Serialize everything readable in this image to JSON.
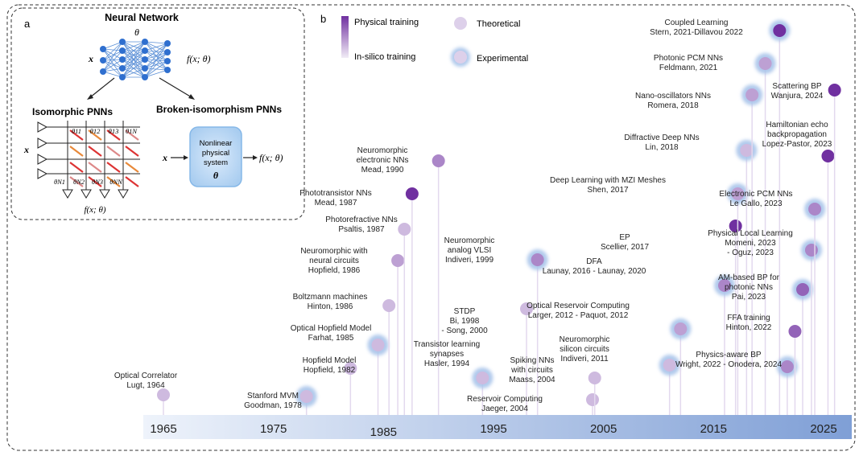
{
  "panel_a": {
    "letter": "a",
    "neural_network_title": "Neural Network",
    "theta": "θ",
    "x": "x",
    "f_label": "f(x; θ)",
    "isomorphic_title": "Isomorphic PNNs",
    "broken_title": "Broken-isomorphism PNNs",
    "crossbar_weights_top": [
      "θ11",
      "θ12",
      "θ13",
      "θ1N"
    ],
    "crossbar_weights_bottom": [
      "θN1",
      "θN2",
      "θN3",
      "θNN"
    ],
    "system_box_lines": [
      "Nonlinear",
      "physical",
      "system"
    ],
    "system_box_theta": "θ",
    "iso_output": "f(x; θ)",
    "broken_input": "x",
    "broken_output": "f(x; θ)"
  },
  "panel_b": {
    "letter": "b",
    "legend": {
      "physical_training": "Physical training",
      "insilico_training": "In-silico training",
      "theoretical": "Theoretical",
      "experimental": "Experimental"
    },
    "axis_years": [
      "1965",
      "1975",
      "1985",
      "1995",
      "2005",
      "2015",
      "2025"
    ],
    "colors": {
      "physical": "#7030a0",
      "insilico": "#e6dcef",
      "glow": "#a9c4ea",
      "axis_start": "#eef3fb",
      "axis_end": "#7f9fd6"
    }
  },
  "chart_data": {
    "type": "timeline",
    "title": "",
    "xlabel": "",
    "ylabel": "",
    "xlim": [
      1965,
      2025
    ],
    "intensity_scale": "0 = in-silico training, 1 = physical training",
    "events": [
      {
        "lines": [
          "Optical Correlator",
          "Lugt, 1964"
        ],
        "year": 1965.0,
        "intensity": 0.2,
        "kind": "theoretical"
      },
      {
        "lines": [
          "Stanford MVM",
          "Goodman, 1978"
        ],
        "year": 1978.0,
        "intensity": 0.2,
        "kind": "experimental"
      },
      {
        "lines": [
          "Hopfield Model",
          "Hopfield, 1982"
        ],
        "year": 1982.0,
        "intensity": 0.2,
        "kind": "theoretical"
      },
      {
        "lines": [
          "Optical Hopfield Model",
          "Farhat, 1985"
        ],
        "year": 1984.5,
        "intensity": 0.2,
        "kind": "experimental"
      },
      {
        "lines": [
          "Boltzmann machines",
          "Hinton, 1986"
        ],
        "year": 1985.5,
        "intensity": 0.2,
        "kind": "theoretical"
      },
      {
        "lines": [
          "Neuromorphic with",
          "neural circuits",
          "Hopfield, 1986"
        ],
        "year": 1986.3,
        "intensity": 0.35,
        "kind": "theoretical"
      },
      {
        "lines": [
          "Photorefractive NNs",
          "Psaltis, 1987"
        ],
        "year": 1986.9,
        "intensity": 0.2,
        "kind": "theoretical"
      },
      {
        "lines": [
          "Phototransistor NNs",
          "Mead, 1987"
        ],
        "year": 1987.6,
        "intensity": 1.0,
        "kind": "theoretical"
      },
      {
        "lines": [
          "Neuromorphic",
          "electronic NNs",
          "Mead, 1990"
        ],
        "year": 1990.0,
        "intensity": 0.5,
        "kind": "theoretical"
      },
      {
        "lines": [
          "Transistor learning",
          "synapses",
          "Hasler, 1994"
        ],
        "year": 1994.0,
        "intensity": 0.2,
        "kind": "experimental"
      },
      {
        "lines": [
          "STDP",
          "Bi, 1998",
          "- Song, 2000"
        ],
        "year": 1998.0,
        "intensity": 0.2,
        "kind": "theoretical"
      },
      {
        "lines": [
          "Neuromorphic",
          "analog VLSI",
          "Indiveri, 1999"
        ],
        "year": 1999.0,
        "intensity": 0.5,
        "kind": "experimental"
      },
      {
        "lines": [
          "Reservoir Computing",
          "Jaeger, 2004"
        ],
        "year": 2004.0,
        "intensity": 0.2,
        "kind": "theoretical"
      },
      {
        "lines": [
          "Spiking NNs",
          "with circuits",
          "Maass, 2004"
        ],
        "year": 2004.2,
        "intensity": 0.2,
        "kind": "theoretical"
      },
      {
        "lines": [
          "Neuromorphic",
          "silicon circuits",
          "Indiveri, 2011"
        ],
        "year": 2011.0,
        "intensity": 0.2,
        "kind": "experimental"
      },
      {
        "lines": [
          "Optical Reservoir Computing",
          "Larger, 2012 - Paquot, 2012"
        ],
        "year": 2012.0,
        "intensity": 0.35,
        "kind": "experimental"
      },
      {
        "lines": [
          "DFA",
          "Launay, 2016 - Launay, 2020"
        ],
        "year": 2016.0,
        "intensity": 0.5,
        "kind": "experimental"
      },
      {
        "lines": [
          "EP",
          "Scellier, 2017"
        ],
        "year": 2017.0,
        "intensity": 1.0,
        "kind": "theoretical"
      },
      {
        "lines": [
          "Deep Learning with MZI Meshes",
          "Shen, 2017"
        ],
        "year": 2017.2,
        "intensity": 0.35,
        "kind": "experimental"
      },
      {
        "lines": [
          "Diffractive Deep NNs",
          "Lin, 2018"
        ],
        "year": 2018.0,
        "intensity": 0.2,
        "kind": "experimental"
      },
      {
        "lines": [
          "Nano-oscillators NNs",
          "Romera, 2018"
        ],
        "year": 2018.5,
        "intensity": 0.35,
        "kind": "experimental"
      },
      {
        "lines": [
          "Photonic PCM NNs",
          "Feldmann, 2021"
        ],
        "year": 2019.7,
        "intensity": 0.35,
        "kind": "experimental"
      },
      {
        "lines": [
          "Coupled Learning",
          "Stern, 2021-Dillavou 2022"
        ],
        "year": 2021.0,
        "intensity": 1.0,
        "kind": "experimental"
      },
      {
        "lines": [
          "Physics-aware BP",
          "Wright, 2022 - Onodera, 2024"
        ],
        "year": 2021.7,
        "intensity": 0.5,
        "kind": "experimental"
      },
      {
        "lines": [
          "FFA training",
          "Hinton, 2022"
        ],
        "year": 2022.4,
        "intensity": 0.7,
        "kind": "theoretical"
      },
      {
        "lines": [
          "AM-based BP for",
          "photonic NNs",
          "Pai, 2023"
        ],
        "year": 2023.1,
        "intensity": 0.7,
        "kind": "experimental"
      },
      {
        "lines": [
          "Physical Local Learning",
          "Momeni, 2023",
          "- Oguz, 2023"
        ],
        "year": 2023.9,
        "intensity": 0.5,
        "kind": "experimental"
      },
      {
        "lines": [
          "Electronic PCM NNs",
          "Le Gallo, 2023"
        ],
        "year": 2024.2,
        "intensity": 0.5,
        "kind": "experimental"
      },
      {
        "lines": [
          "Hamiltonian echo",
          "backpropagation",
          "Lopez-Pastor, 2023"
        ],
        "year": 2025.4,
        "intensity": 1.0,
        "kind": "theoretical"
      },
      {
        "lines": [
          "Scattering BP",
          "Wanjura, 2024"
        ],
        "year": 2026.0,
        "intensity": 1.0,
        "kind": "theoretical"
      }
    ]
  }
}
